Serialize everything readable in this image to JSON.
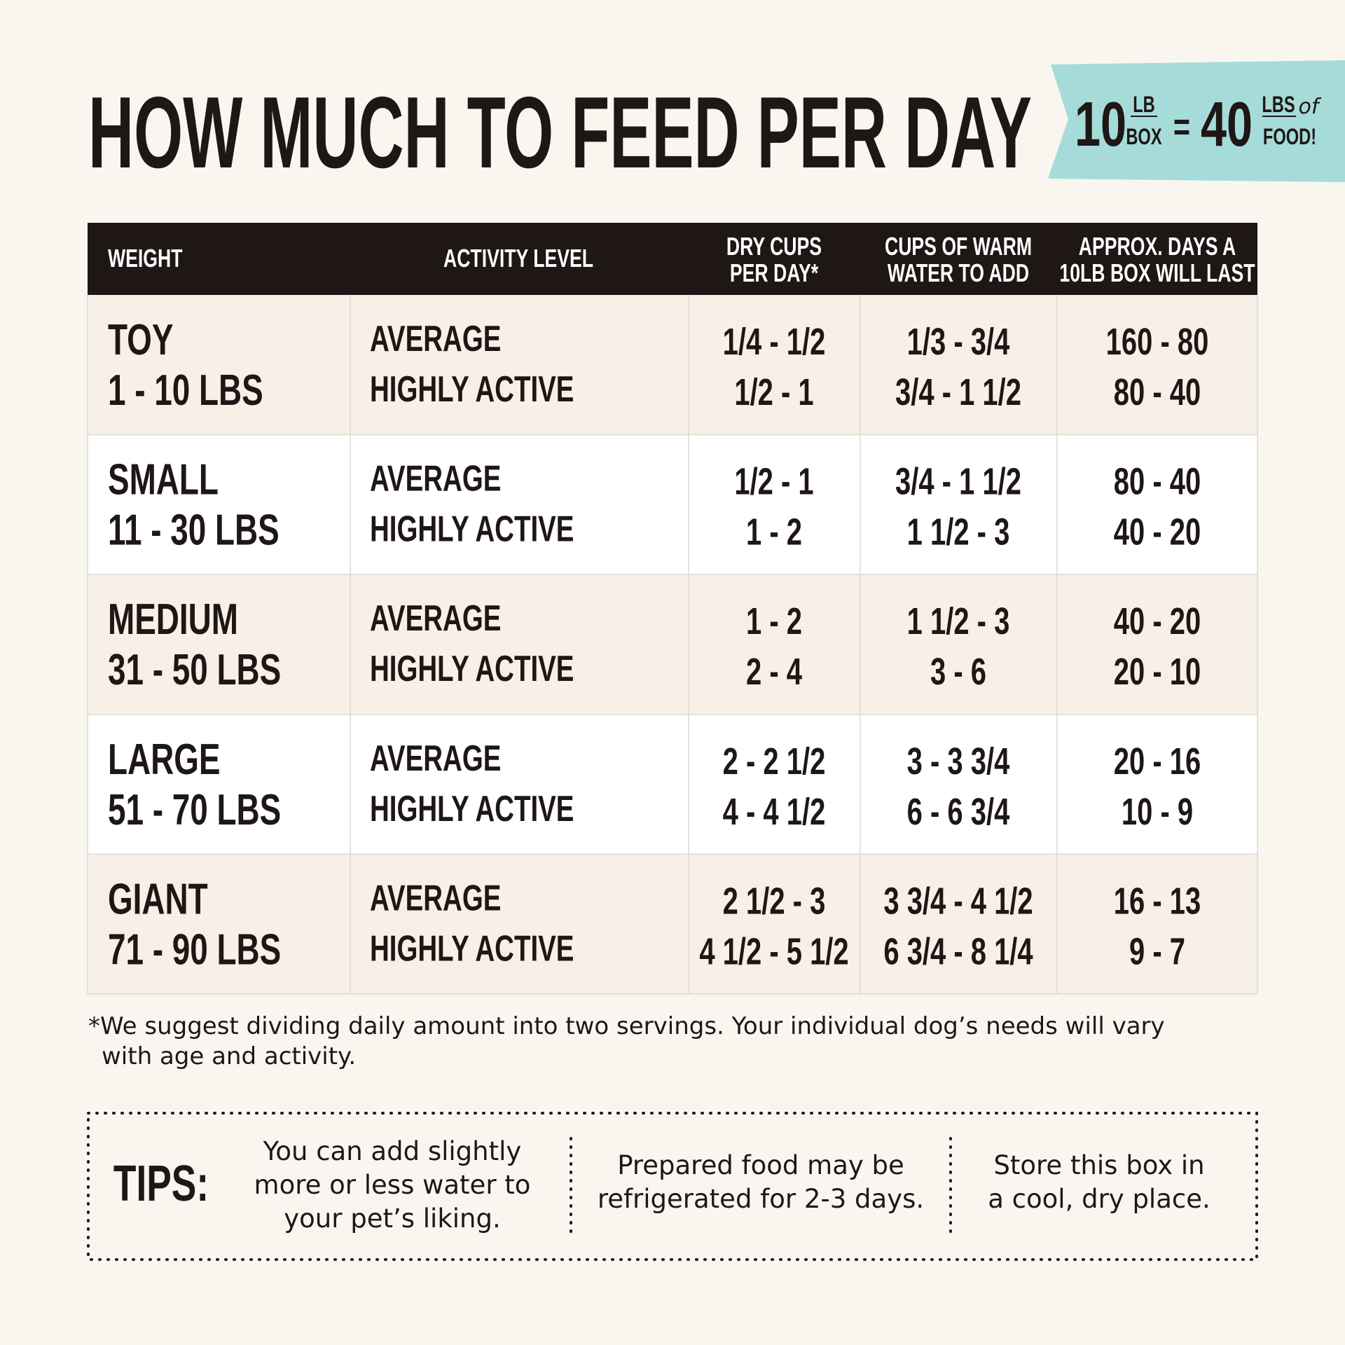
{
  "header": {
    "title": "HOW MUCH TO FEED PER DAY",
    "badge": {
      "box_number": "10",
      "box_unit_top": "LB",
      "box_unit_bottom": "BOX",
      "equals": "=",
      "food_number": "40",
      "food_unit_top": "LBS",
      "food_unit_of": "of",
      "food_unit_bottom": "FOOD!"
    }
  },
  "table": {
    "columns": [
      [
        "WEIGHT"
      ],
      [
        "ACTIVITY LEVEL"
      ],
      [
        "DRY CUPS",
        "PER DAY*"
      ],
      [
        "CUPS OF WARM",
        "WATER TO ADD"
      ],
      [
        "APPROX. DAYS A",
        "10LB BOX WILL LAST"
      ]
    ],
    "rows": [
      {
        "size": "TOY",
        "weight": "1 - 10 LBS",
        "activity": [
          "AVERAGE",
          "HIGHLY ACTIVE"
        ],
        "dry_cups": [
          "1/4 - 1/2",
          "1/2 - 1"
        ],
        "water_cups": [
          "1/3 - 3/4",
          "3/4 - 1 1/2"
        ],
        "days": [
          "160 - 80",
          "80 - 40"
        ]
      },
      {
        "size": "SMALL",
        "weight": "11 - 30 LBS",
        "activity": [
          "AVERAGE",
          "HIGHLY ACTIVE"
        ],
        "dry_cups": [
          "1/2 - 1",
          "1 - 2"
        ],
        "water_cups": [
          "3/4 - 1 1/2",
          "1 1/2 - 3"
        ],
        "days": [
          "80 - 40",
          "40 - 20"
        ]
      },
      {
        "size": "MEDIUM",
        "weight": "31 - 50 LBS",
        "activity": [
          "AVERAGE",
          "HIGHLY ACTIVE"
        ],
        "dry_cups": [
          "1 - 2",
          "2 - 4"
        ],
        "water_cups": [
          "1 1/2 - 3",
          "3 - 6"
        ],
        "days": [
          "40 - 20",
          "20 - 10"
        ]
      },
      {
        "size": "LARGE",
        "weight": "51 - 70 LBS",
        "activity": [
          "AVERAGE",
          "HIGHLY ACTIVE"
        ],
        "dry_cups": [
          "2 - 2 1/2",
          "4 - 4 1/2"
        ],
        "water_cups": [
          "3 - 3 3/4",
          "6 - 6 3/4"
        ],
        "days": [
          "20 - 16",
          "10 - 9"
        ]
      },
      {
        "size": "GIANT",
        "weight": "71 - 90 LBS",
        "activity": [
          "AVERAGE",
          "HIGHLY ACTIVE"
        ],
        "dry_cups": [
          "2 1/2 - 3",
          "4 1/2 - 5 1/2"
        ],
        "water_cups": [
          "3 3/4 - 4 1/2",
          "6 3/4 - 8 1/4"
        ],
        "days": [
          "16 - 13",
          "9 - 7"
        ]
      }
    ]
  },
  "footnote": [
    "*We suggest dividing daily amount into two servings. Your individual dog’s needs will vary",
    "with age and activity."
  ],
  "tips": {
    "label": "TIPS:",
    "items": [
      [
        "You can add slightly",
        "more or less water to",
        "your pet’s liking."
      ],
      [
        "Prepared food may be",
        "refrigerated for 2-3 days."
      ],
      [
        "Store this box in",
        "a cool, dry place."
      ]
    ]
  }
}
